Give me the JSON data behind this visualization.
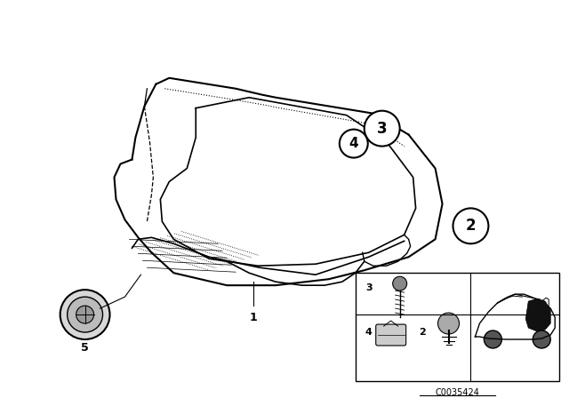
{
  "bg_color": "#ffffff",
  "fig_width": 6.4,
  "fig_height": 4.48,
  "dpi": 100,
  "part_code": "C0035424",
  "line_color": "#000000"
}
